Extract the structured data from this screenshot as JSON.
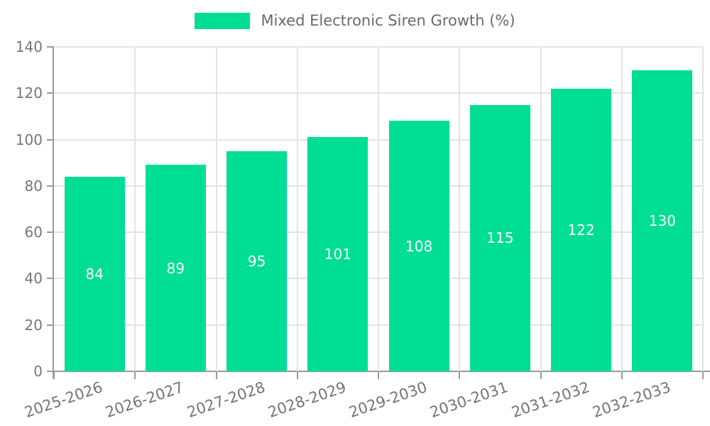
{
  "legend": {
    "label": "Mixed Electronic Siren Growth (%)"
  },
  "chart_data": {
    "type": "bar",
    "title": "",
    "categories": [
      "2025-2026",
      "2026-2027",
      "2027-2028",
      "2028-2029",
      "2029-2030",
      "2030-2031",
      "2031-2032",
      "2032-2033"
    ],
    "series": [
      {
        "name": "Mixed Electronic Siren Growth (%)",
        "values": [
          84,
          89,
          95,
          101,
          108,
          115,
          122,
          130
        ]
      }
    ],
    "value_labels_shown": true,
    "xlabel": "",
    "ylabel": "",
    "ylim": [
      0,
      140
    ],
    "yticks": [
      0,
      20,
      40,
      60,
      80,
      100,
      120,
      140
    ],
    "grid": true,
    "legend_position": "top-center",
    "x_label_rotation_deg": -19
  },
  "colors": {
    "bar": "#00de93",
    "value_label": "#ffffff",
    "grid": "#e3e3e3",
    "axis": "#9a9a9a",
    "tick_label": "#757575",
    "legend_text": "#6a6a6a",
    "background": "#ffffff"
  }
}
